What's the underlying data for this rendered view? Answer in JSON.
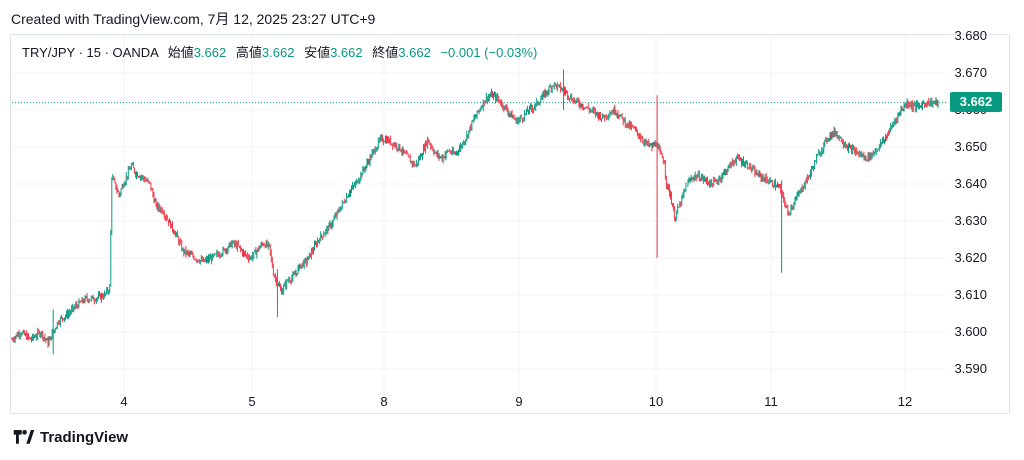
{
  "header": {
    "created_text": "Created with TradingView.com, 7月 12, 2025 23:27 UTC+9"
  },
  "legend": {
    "symbol": "TRY/JPY · 15 · OANDA",
    "open_label": "始値",
    "open_value": "3.662",
    "high_label": "高値",
    "high_value": "3.662",
    "low_label": "安値",
    "low_value": "3.662",
    "close_label": "終値",
    "close_value": "3.662",
    "change": "−0.001 (−0.03%)"
  },
  "last_price": "3.662",
  "colors": {
    "up": "#089981",
    "down": "#f23645",
    "grid": "#f0f3fa",
    "text": "#131722",
    "badge": "#089981"
  },
  "brand": {
    "name": "TradingView",
    "icon": "tradingview-logo-icon"
  },
  "chart_data": {
    "type": "candlestick",
    "symbol": "TRY/JPY",
    "interval": "15",
    "source": "OANDA",
    "x_tick_labels": [
      "4",
      "5",
      "8",
      "9",
      "10",
      "11",
      "12"
    ],
    "y_tick_labels": [
      "3.680",
      "3.670",
      "3.660",
      "3.650",
      "3.640",
      "3.630",
      "3.620",
      "3.610",
      "3.600",
      "3.590"
    ],
    "ylim": [
      3.585,
      3.681
    ],
    "grid": true,
    "last_price_line": 3.662,
    "path": [
      [
        0,
        3.598
      ],
      [
        8,
        3.6
      ],
      [
        18,
        3.598
      ],
      [
        28,
        3.6
      ],
      [
        35,
        3.597
      ],
      [
        45,
        3.603
      ],
      [
        55,
        3.605
      ],
      [
        62,
        3.607
      ],
      [
        72,
        3.609
      ],
      [
        80,
        3.609
      ],
      [
        90,
        3.61
      ],
      [
        95,
        3.612
      ],
      [
        97,
        3.642
      ],
      [
        104,
        3.637
      ],
      [
        108,
        3.64
      ],
      [
        116,
        3.645
      ],
      [
        120,
        3.643
      ],
      [
        126,
        3.642
      ],
      [
        134,
        3.64
      ],
      [
        140,
        3.634
      ],
      [
        146,
        3.633
      ],
      [
        152,
        3.63
      ],
      [
        160,
        3.626
      ],
      [
        166,
        3.622
      ],
      [
        172,
        3.621
      ],
      [
        178,
        3.62
      ],
      [
        186,
        3.619
      ],
      [
        194,
        3.62
      ],
      [
        200,
        3.621
      ],
      [
        206,
        3.622
      ],
      [
        214,
        3.624
      ],
      [
        220,
        3.623
      ],
      [
        226,
        3.621
      ],
      [
        232,
        3.62
      ],
      [
        238,
        3.622
      ],
      [
        244,
        3.624
      ],
      [
        250,
        3.623
      ],
      [
        254,
        3.616
      ],
      [
        258,
        3.613
      ],
      [
        262,
        3.611
      ],
      [
        268,
        3.614
      ],
      [
        274,
        3.615
      ],
      [
        280,
        3.618
      ],
      [
        286,
        3.619
      ],
      [
        292,
        3.622
      ],
      [
        298,
        3.625
      ],
      [
        304,
        3.627
      ],
      [
        310,
        3.629
      ],
      [
        316,
        3.632
      ],
      [
        322,
        3.635
      ],
      [
        328,
        3.638
      ],
      [
        334,
        3.64
      ],
      [
        340,
        3.643
      ],
      [
        346,
        3.646
      ],
      [
        352,
        3.649
      ],
      [
        358,
        3.652
      ],
      [
        364,
        3.652
      ],
      [
        370,
        3.651
      ],
      [
        376,
        3.65
      ],
      [
        382,
        3.648
      ],
      [
        388,
        3.646
      ],
      [
        392,
        3.645
      ],
      [
        398,
        3.648
      ],
      [
        404,
        3.652
      ],
      [
        408,
        3.65
      ],
      [
        412,
        3.648
      ],
      [
        418,
        3.647
      ],
      [
        424,
        3.649
      ],
      [
        430,
        3.648
      ],
      [
        436,
        3.65
      ],
      [
        442,
        3.653
      ],
      [
        448,
        3.657
      ],
      [
        454,
        3.66
      ],
      [
        460,
        3.663
      ],
      [
        466,
        3.664
      ],
      [
        472,
        3.663
      ],
      [
        478,
        3.661
      ],
      [
        484,
        3.659
      ],
      [
        490,
        3.657
      ],
      [
        496,
        3.658
      ],
      [
        502,
        3.66
      ],
      [
        508,
        3.661
      ],
      [
        514,
        3.663
      ],
      [
        520,
        3.665
      ],
      [
        526,
        3.667
      ],
      [
        532,
        3.666
      ],
      [
        538,
        3.665
      ],
      [
        544,
        3.663
      ],
      [
        550,
        3.662
      ],
      [
        556,
        3.661
      ],
      [
        562,
        3.66
      ],
      [
        568,
        3.659
      ],
      [
        574,
        3.658
      ],
      [
        580,
        3.659
      ],
      [
        586,
        3.66
      ],
      [
        592,
        3.658
      ],
      [
        598,
        3.656
      ],
      [
        604,
        3.655
      ],
      [
        610,
        3.653
      ],
      [
        616,
        3.651
      ],
      [
        622,
        3.65
      ],
      [
        626,
        3.651
      ],
      [
        630,
        3.648
      ],
      [
        634,
        3.646
      ],
      [
        636,
        3.64
      ],
      [
        640,
        3.637
      ],
      [
        644,
        3.631
      ],
      [
        650,
        3.635
      ],
      [
        656,
        3.64
      ],
      [
        662,
        3.642
      ],
      [
        668,
        3.642
      ],
      [
        674,
        3.641
      ],
      [
        680,
        3.64
      ],
      [
        686,
        3.641
      ],
      [
        692,
        3.643
      ],
      [
        698,
        3.645
      ],
      [
        704,
        3.647
      ],
      [
        710,
        3.646
      ],
      [
        716,
        3.645
      ],
      [
        722,
        3.643
      ],
      [
        728,
        3.642
      ],
      [
        734,
        3.641
      ],
      [
        740,
        3.64
      ],
      [
        746,
        3.639
      ],
      [
        750,
        3.636
      ],
      [
        754,
        3.632
      ],
      [
        758,
        3.634
      ],
      [
        764,
        3.637
      ],
      [
        770,
        3.64
      ],
      [
        776,
        3.643
      ],
      [
        782,
        3.647
      ],
      [
        788,
        3.65
      ],
      [
        794,
        3.653
      ],
      [
        800,
        3.654
      ],
      [
        806,
        3.652
      ],
      [
        812,
        3.65
      ],
      [
        818,
        3.649
      ],
      [
        824,
        3.648
      ],
      [
        830,
        3.647
      ],
      [
        836,
        3.648
      ],
      [
        842,
        3.65
      ],
      [
        848,
        3.652
      ],
      [
        854,
        3.655
      ],
      [
        858,
        3.657
      ],
      [
        864,
        3.66
      ],
      [
        870,
        3.662
      ],
      [
        876,
        3.661
      ],
      [
        882,
        3.661
      ],
      [
        888,
        3.662
      ],
      [
        894,
        3.662
      ],
      [
        900,
        3.662
      ]
    ],
    "spikes": [
      {
        "index": 627,
        "low": 3.62,
        "high": 3.664
      },
      {
        "index": 748,
        "low": 3.616,
        "high": 3.641
      },
      {
        "index": 258,
        "low": 3.604,
        "high": 3.617
      },
      {
        "index": 40,
        "low": 3.594,
        "high": 3.606
      },
      {
        "index": 536,
        "low": 3.66,
        "high": 3.671
      }
    ]
  }
}
